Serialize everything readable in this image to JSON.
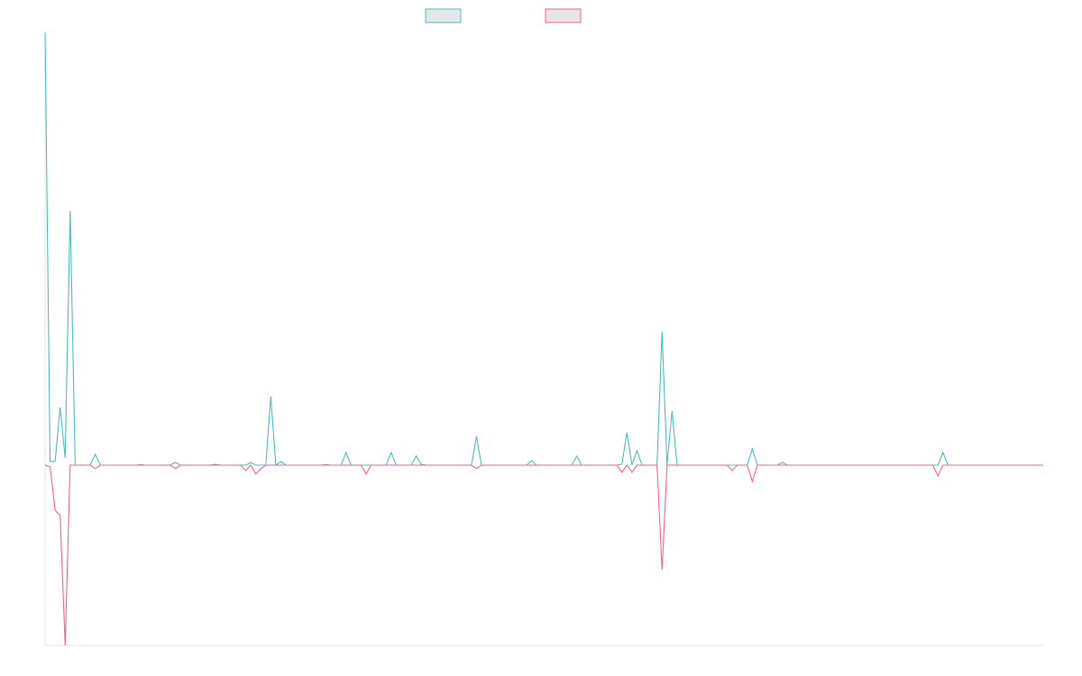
{
  "chart_data": {
    "type": "line",
    "title": "",
    "xlabel": "",
    "ylabel": "",
    "ylim": [
      -100,
      240
    ],
    "grid": false,
    "legend_placement": "top-center",
    "x_count": 140,
    "series": [
      {
        "name": "",
        "color": "#4bc0c0",
        "fill": "#e6e6e6",
        "points": [
          [
            0,
            240
          ],
          [
            1,
            2
          ],
          [
            2,
            2
          ],
          [
            3,
            32
          ],
          [
            4,
            4
          ],
          [
            5,
            141
          ],
          [
            6,
            0
          ],
          [
            9,
            0
          ],
          [
            10,
            6
          ],
          [
            11,
            0
          ],
          [
            19,
            0.3
          ],
          [
            20,
            0
          ],
          [
            26,
            1.5
          ],
          [
            27,
            0
          ],
          [
            34,
            0.5
          ],
          [
            35,
            0
          ],
          [
            41,
            1.5
          ],
          [
            42,
            0
          ],
          [
            45,
            38
          ],
          [
            46,
            0
          ],
          [
            47,
            2
          ],
          [
            48,
            0
          ],
          [
            56,
            0.3
          ],
          [
            57,
            0
          ],
          [
            60,
            7
          ],
          [
            61,
            0
          ],
          [
            69,
            7
          ],
          [
            70,
            0
          ],
          [
            74,
            5
          ],
          [
            75,
            0.5
          ],
          [
            76,
            0
          ],
          [
            86,
            16
          ],
          [
            87,
            0
          ],
          [
            97,
            2.5
          ],
          [
            98,
            0
          ],
          [
            106,
            5
          ],
          [
            107,
            0
          ],
          [
            115,
            0.5
          ],
          [
            116,
            18
          ],
          [
            117,
            0
          ],
          [
            118,
            8
          ],
          [
            119,
            0
          ],
          [
            123,
            74
          ],
          [
            124,
            0
          ],
          [
            125,
            30
          ],
          [
            126,
            0
          ],
          [
            141,
            9
          ],
          [
            142,
            0
          ],
          [
            147,
            1.5
          ],
          [
            148,
            0
          ],
          [
            179,
            7
          ],
          [
            180,
            0
          ],
          [
            199,
            0
          ]
        ]
      },
      {
        "name": "",
        "color": "#ff6384",
        "fill": "#e6e6e6",
        "points": [
          [
            0,
            0
          ],
          [
            1,
            -1
          ],
          [
            2,
            -25
          ],
          [
            3,
            -28
          ],
          [
            4,
            -100
          ],
          [
            5,
            0
          ],
          [
            9,
            0
          ],
          [
            10,
            -2
          ],
          [
            11,
            0
          ],
          [
            26,
            -2
          ],
          [
            27,
            0
          ],
          [
            40,
            -3
          ],
          [
            41,
            0
          ],
          [
            42,
            -5
          ],
          [
            43,
            -2
          ],
          [
            44,
            0
          ],
          [
            64,
            -5
          ],
          [
            65,
            0
          ],
          [
            86,
            -2
          ],
          [
            87,
            0
          ],
          [
            115,
            -4
          ],
          [
            116,
            0
          ],
          [
            117,
            -4
          ],
          [
            118,
            0
          ],
          [
            123,
            -58
          ],
          [
            124,
            0
          ],
          [
            137,
            -3
          ],
          [
            138,
            0
          ],
          [
            141,
            -9
          ],
          [
            142,
            0
          ],
          [
            178,
            -6
          ],
          [
            179,
            0
          ],
          [
            199,
            0
          ]
        ]
      }
    ]
  }
}
